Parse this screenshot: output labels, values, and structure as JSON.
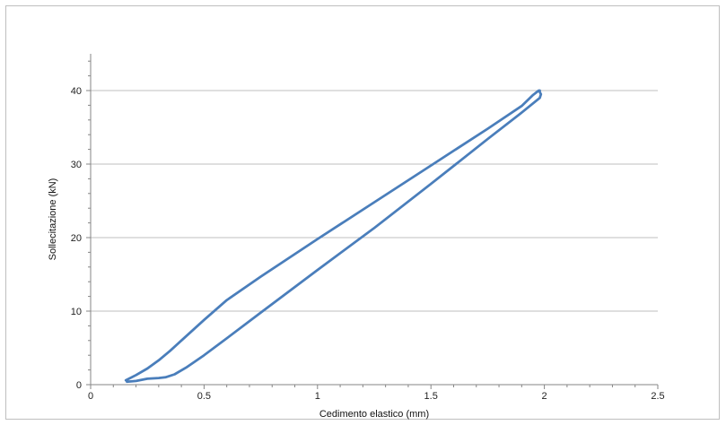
{
  "chart_data": {
    "type": "line",
    "title": "",
    "xlabel": "Cedimento elastico (mm)",
    "ylabel": "Sollecitazione (kN)",
    "xlim": [
      0,
      2.5
    ],
    "ylim": [
      0,
      45
    ],
    "xticks": [
      0,
      0.5,
      1,
      1.5,
      2,
      2.5
    ],
    "xtick_labels": [
      "0",
      "0.5",
      "1",
      "1.5",
      "2",
      "2.5"
    ],
    "yticks": [
      0,
      10,
      20,
      30,
      40
    ],
    "ytick_labels": [
      "0",
      "10",
      "20",
      "30",
      "40"
    ],
    "grid": "horizontal",
    "legend": "none",
    "series": [
      {
        "color": "#4a7ebb",
        "points": [
          [
            0.155,
            0.6
          ],
          [
            0.2,
            1.3
          ],
          [
            0.25,
            2.2
          ],
          [
            0.3,
            3.3
          ],
          [
            0.35,
            4.6
          ],
          [
            0.4,
            6.0
          ],
          [
            0.5,
            8.8
          ],
          [
            0.6,
            11.5
          ],
          [
            0.75,
            14.7
          ],
          [
            1.0,
            19.8
          ],
          [
            1.25,
            24.8
          ],
          [
            1.5,
            29.8
          ],
          [
            1.75,
            34.8
          ],
          [
            1.9,
            37.9
          ],
          [
            1.95,
            39.4
          ],
          [
            1.975,
            40.0
          ],
          [
            1.98,
            40.0
          ],
          [
            1.98,
            39.8
          ],
          [
            1.985,
            39.5
          ],
          [
            1.98,
            39.0
          ],
          [
            1.9,
            37.0
          ],
          [
            1.75,
            33.4
          ],
          [
            1.5,
            27.3
          ],
          [
            1.25,
            21.3
          ],
          [
            1.0,
            15.6
          ],
          [
            0.75,
            9.8
          ],
          [
            0.6,
            6.3
          ],
          [
            0.5,
            4.0
          ],
          [
            0.42,
            2.3
          ],
          [
            0.37,
            1.4
          ],
          [
            0.33,
            1.0
          ],
          [
            0.3,
            0.9
          ],
          [
            0.25,
            0.8
          ],
          [
            0.2,
            0.5
          ],
          [
            0.16,
            0.4
          ]
        ]
      }
    ]
  }
}
